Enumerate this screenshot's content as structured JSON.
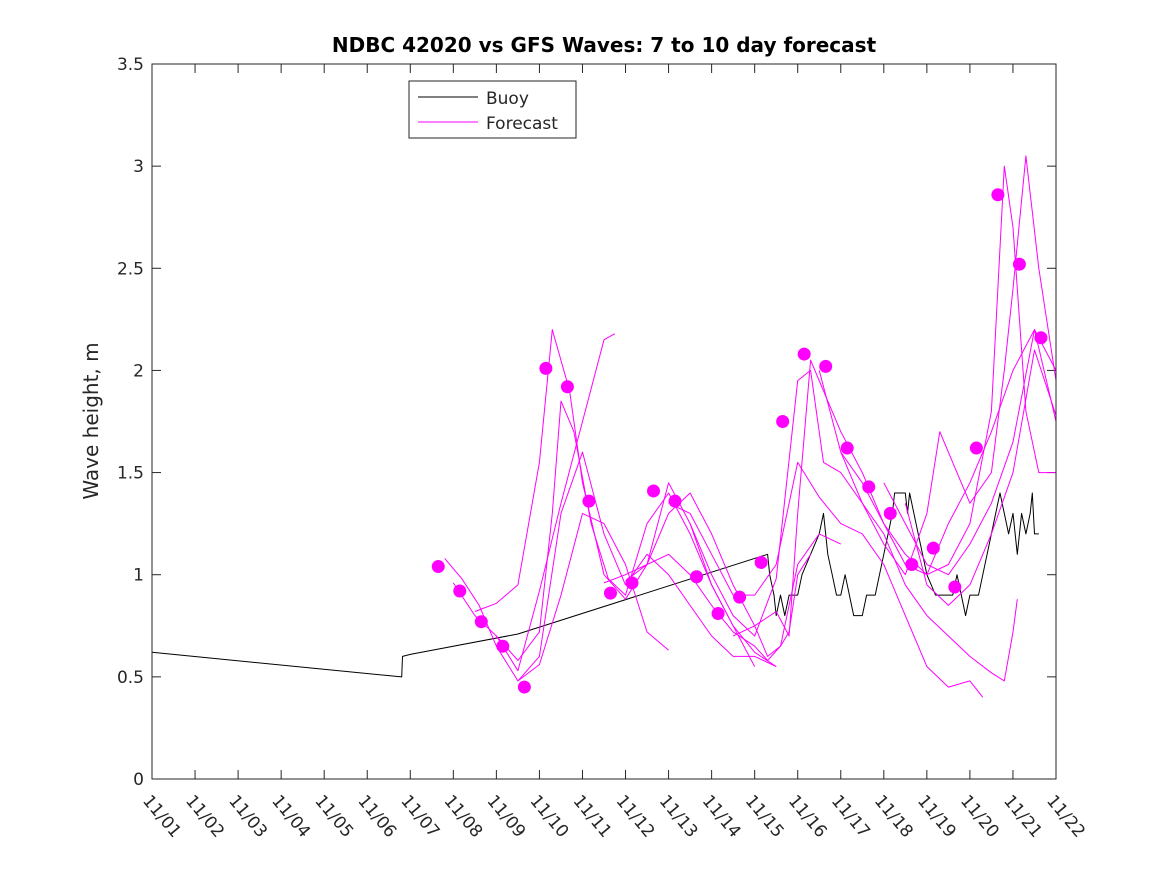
{
  "chart_data": {
    "type": "line",
    "title": "NDBC 42020 vs GFS Waves: 7 to 10 day forecast",
    "xlabel": "",
    "ylabel": "Wave height, m",
    "xlim": [
      0,
      21
    ],
    "ylim": [
      0,
      3.5
    ],
    "x_ticks": [
      0,
      1,
      2,
      3,
      4,
      5,
      6,
      7,
      8,
      9,
      10,
      11,
      12,
      13,
      14,
      15,
      16,
      17,
      18,
      19,
      20,
      21
    ],
    "x_tick_labels": [
      "11/01",
      "11/02",
      "11/03",
      "11/04",
      "11/05",
      "11/06",
      "11/07",
      "11/08",
      "11/09",
      "11/10",
      "11/11",
      "11/12",
      "11/13",
      "11/14",
      "11/15",
      "11/16",
      "11/17",
      "11/18",
      "11/19",
      "11/20",
      "11/21",
      "11/22"
    ],
    "y_ticks": [
      0,
      0.5,
      1,
      1.5,
      2,
      2.5,
      3,
      3.5
    ],
    "y_tick_labels": [
      "0",
      "0.5",
      "1",
      "1.5",
      "2",
      "2.5",
      "3",
      "3.5"
    ],
    "legend": {
      "position": "top-left",
      "entries": [
        {
          "label": "Buoy",
          "color": "#000000"
        },
        {
          "label": "Forecast",
          "color": "#ff00ff"
        }
      ]
    },
    "colors": {
      "buoy": "#000000",
      "forecast": "#ff00ff"
    },
    "series": [
      {
        "name": "Buoy",
        "color": "#000000",
        "points": [
          [
            0,
            0.62
          ],
          [
            5.8,
            0.5
          ],
          [
            5.82,
            0.6
          ],
          [
            6.0,
            0.61
          ],
          [
            8.5,
            0.71
          ],
          [
            14.3,
            1.1
          ],
          [
            14.35,
            1.0
          ],
          [
            14.45,
            0.9
          ],
          [
            14.5,
            0.8
          ],
          [
            14.6,
            0.9
          ],
          [
            14.7,
            0.8
          ],
          [
            14.8,
            0.9
          ],
          [
            15.0,
            0.9
          ],
          [
            15.1,
            1.0
          ],
          [
            15.3,
            1.1
          ],
          [
            15.5,
            1.2
          ],
          [
            15.6,
            1.3
          ],
          [
            15.7,
            1.1
          ],
          [
            15.8,
            1.0
          ],
          [
            15.9,
            0.9
          ],
          [
            16.0,
            0.9
          ],
          [
            16.1,
            1.0
          ],
          [
            16.2,
            0.9
          ],
          [
            16.3,
            0.8
          ],
          [
            16.5,
            0.8
          ],
          [
            16.6,
            0.9
          ],
          [
            16.8,
            0.9
          ],
          [
            16.9,
            1.0
          ],
          [
            17.0,
            1.1
          ],
          [
            17.1,
            1.2
          ],
          [
            17.2,
            1.3
          ],
          [
            17.25,
            1.4
          ],
          [
            17.5,
            1.4
          ],
          [
            17.55,
            1.3
          ],
          [
            17.6,
            1.4
          ],
          [
            17.7,
            1.3
          ],
          [
            17.8,
            1.2
          ],
          [
            17.9,
            1.1
          ],
          [
            18.0,
            1.0
          ],
          [
            18.2,
            0.9
          ],
          [
            18.6,
            0.9
          ],
          [
            18.7,
            1.0
          ],
          [
            18.8,
            0.9
          ],
          [
            18.9,
            0.8
          ],
          [
            19.0,
            0.9
          ],
          [
            19.2,
            0.9
          ],
          [
            19.3,
            1.0
          ],
          [
            19.4,
            1.1
          ],
          [
            19.5,
            1.2
          ],
          [
            19.6,
            1.3
          ],
          [
            19.7,
            1.4
          ],
          [
            19.8,
            1.3
          ],
          [
            19.9,
            1.2
          ],
          [
            20.0,
            1.3
          ],
          [
            20.1,
            1.1
          ],
          [
            20.2,
            1.3
          ],
          [
            20.3,
            1.2
          ],
          [
            20.4,
            1.3
          ],
          [
            20.45,
            1.4
          ],
          [
            20.5,
            1.2
          ],
          [
            20.6,
            1.2
          ]
        ]
      },
      {
        "name": "Forecast",
        "color": "#ff00ff",
        "points": [
          [
            6.8,
            1.08
          ],
          [
            7.2,
            0.98
          ],
          [
            7.6,
            0.85
          ],
          [
            8.0,
            0.65
          ],
          [
            8.5,
            0.48
          ],
          [
            9.0,
            0.56
          ],
          [
            9.5,
            0.9
          ],
          [
            10.0,
            1.3
          ],
          [
            10.5,
            1.25
          ],
          [
            11.0,
            1.05
          ],
          [
            11.5,
            0.72
          ],
          [
            12.0,
            0.63
          ]
        ]
      },
      {
        "name": "Forecast",
        "color": "#ff00ff",
        "points": [
          [
            7.0,
            0.96
          ],
          [
            7.5,
            0.8
          ],
          [
            8.0,
            0.7
          ],
          [
            8.5,
            0.58
          ],
          [
            9.0,
            0.72
          ],
          [
            9.3,
            1.3
          ],
          [
            9.5,
            1.85
          ],
          [
            9.8,
            1.7
          ],
          [
            10.2,
            1.25
          ],
          [
            10.6,
            0.98
          ],
          [
            11.0,
            0.9
          ],
          [
            11.5,
            1.25
          ],
          [
            12.0,
            1.4
          ],
          [
            12.5,
            1.2
          ],
          [
            13.0,
            0.95
          ],
          [
            13.5,
            0.75
          ],
          [
            14.0,
            0.55
          ]
        ]
      },
      {
        "name": "Forecast",
        "color": "#ff00ff",
        "points": [
          [
            7.5,
            0.82
          ],
          [
            8.0,
            0.86
          ],
          [
            8.5,
            0.95
          ],
          [
            9.0,
            1.55
          ],
          [
            9.3,
            2.2
          ],
          [
            9.7,
            1.9
          ],
          [
            10.0,
            1.45
          ],
          [
            10.5,
            1.0
          ],
          [
            11.0,
            0.88
          ],
          [
            11.5,
            1.05
          ],
          [
            12.0,
            1.45
          ],
          [
            12.5,
            1.25
          ],
          [
            13.0,
            0.95
          ],
          [
            13.5,
            0.75
          ],
          [
            14.0,
            0.62
          ],
          [
            14.5,
            0.55
          ]
        ]
      },
      {
        "name": "Forecast",
        "color": "#ff00ff",
        "points": [
          [
            8.0,
            0.7
          ],
          [
            8.5,
            0.53
          ],
          [
            9.0,
            0.92
          ],
          [
            9.5,
            1.35
          ],
          [
            10.0,
            1.75
          ],
          [
            10.5,
            2.15
          ],
          [
            10.75,
            2.18
          ]
        ]
      },
      {
        "name": "Forecast",
        "color": "#ff00ff",
        "points": [
          [
            8.5,
            0.48
          ],
          [
            9.0,
            0.6
          ],
          [
            9.5,
            1.3
          ],
          [
            10.0,
            1.6
          ],
          [
            10.5,
            1.2
          ],
          [
            11.0,
            0.95
          ],
          [
            11.5,
            1.1
          ],
          [
            12.0,
            1.0
          ],
          [
            12.5,
            0.85
          ],
          [
            13.0,
            0.7
          ],
          [
            13.5,
            0.6
          ],
          [
            14.0,
            0.6
          ],
          [
            14.5,
            0.55
          ]
        ]
      },
      {
        "name": "Forecast",
        "color": "#ff00ff",
        "points": [
          [
            10.5,
            0.96
          ],
          [
            11.0,
            1.0
          ],
          [
            11.5,
            1.05
          ],
          [
            12.0,
            1.1
          ],
          [
            12.5,
            1.0
          ],
          [
            13.0,
            0.85
          ],
          [
            13.5,
            0.72
          ],
          [
            14.0,
            0.65
          ],
          [
            14.3,
            0.58
          ],
          [
            14.6,
            0.65
          ],
          [
            14.8,
            0.72
          ],
          [
            15.0,
            1.0
          ],
          [
            15.3,
            1.1
          ]
        ]
      },
      {
        "name": "Forecast",
        "color": "#ff00ff",
        "points": [
          [
            11.0,
            0.97
          ],
          [
            11.5,
            1.05
          ],
          [
            12.0,
            1.3
          ],
          [
            12.5,
            1.4
          ],
          [
            13.0,
            1.2
          ],
          [
            13.5,
            0.95
          ],
          [
            14.0,
            0.75
          ],
          [
            14.3,
            0.6
          ],
          [
            14.6,
            0.65
          ],
          [
            14.8,
            0.85
          ],
          [
            15.0,
            1.05
          ],
          [
            15.5,
            1.2
          ],
          [
            16.0,
            1.15
          ]
        ]
      },
      {
        "name": "Forecast",
        "color": "#ff00ff",
        "points": [
          [
            12.0,
            1.35
          ],
          [
            12.5,
            1.3
          ],
          [
            13.0,
            1.1
          ],
          [
            13.5,
            0.9
          ],
          [
            14.0,
            0.9
          ],
          [
            14.5,
            1.05
          ],
          [
            15.0,
            1.55
          ],
          [
            15.5,
            1.38
          ],
          [
            16.0,
            1.25
          ],
          [
            16.5,
            1.2
          ],
          [
            17.0,
            1.05
          ],
          [
            17.5,
            0.8
          ],
          [
            18.0,
            0.55
          ],
          [
            18.5,
            0.45
          ],
          [
            19.0,
            0.48
          ],
          [
            19.3,
            0.4
          ]
        ]
      },
      {
        "name": "Forecast",
        "color": "#ff00ff",
        "points": [
          [
            12.5,
            1.25
          ],
          [
            13.0,
            1.0
          ],
          [
            13.5,
            0.8
          ],
          [
            14.0,
            0.7
          ],
          [
            14.5,
            0.98
          ],
          [
            15.0,
            1.95
          ],
          [
            15.3,
            2.0
          ],
          [
            15.6,
            1.55
          ],
          [
            16.0,
            1.5
          ],
          [
            16.5,
            1.35
          ],
          [
            17.0,
            1.2
          ],
          [
            17.5,
            0.95
          ],
          [
            18.0,
            0.8
          ],
          [
            18.5,
            0.7
          ],
          [
            19.0,
            0.6
          ],
          [
            19.5,
            0.52
          ],
          [
            19.8,
            0.48
          ],
          [
            20.0,
            0.72
          ],
          [
            20.1,
            0.88
          ]
        ]
      },
      {
        "name": "Forecast",
        "color": "#ff00ff",
        "points": [
          [
            13.5,
            0.7
          ],
          [
            14.0,
            0.75
          ],
          [
            14.5,
            0.82
          ],
          [
            14.8,
            0.7
          ],
          [
            15.0,
            1.3
          ],
          [
            15.3,
            2.05
          ],
          [
            15.7,
            1.85
          ],
          [
            16.0,
            1.7
          ],
          [
            16.5,
            1.5
          ],
          [
            17.0,
            1.25
          ],
          [
            17.5,
            1.05
          ],
          [
            18.0,
            1.0
          ],
          [
            18.5,
            1.05
          ],
          [
            19.0,
            1.25
          ],
          [
            19.5,
            1.8
          ],
          [
            19.8,
            3.0
          ],
          [
            20.0,
            2.7
          ],
          [
            20.3,
            1.8
          ],
          [
            20.6,
            1.5
          ],
          [
            21.0,
            1.5
          ]
        ]
      },
      {
        "name": "Forecast",
        "color": "#ff00ff",
        "points": [
          [
            15.5,
            2.0
          ],
          [
            16.0,
            1.6
          ],
          [
            16.5,
            1.45
          ],
          [
            17.0,
            1.25
          ],
          [
            17.5,
            1.1
          ],
          [
            18.0,
            1.0
          ],
          [
            18.5,
            1.25
          ],
          [
            19.0,
            1.45
          ],
          [
            19.5,
            1.7
          ],
          [
            20.0,
            2.0
          ],
          [
            20.5,
            2.2
          ],
          [
            21.0,
            1.75
          ]
        ]
      },
      {
        "name": "Forecast",
        "color": "#ff00ff",
        "points": [
          [
            16.0,
            1.6
          ],
          [
            16.5,
            1.35
          ],
          [
            17.0,
            1.15
          ],
          [
            17.5,
            1.0
          ],
          [
            18.0,
            1.3
          ],
          [
            18.3,
            1.7
          ],
          [
            18.6,
            1.55
          ],
          [
            19.0,
            1.35
          ],
          [
            19.5,
            1.5
          ],
          [
            19.8,
            2.0
          ],
          [
            20.0,
            2.4
          ],
          [
            20.3,
            3.05
          ],
          [
            20.6,
            2.5
          ],
          [
            21.0,
            1.95
          ]
        ]
      },
      {
        "name": "Forecast",
        "color": "#ff00ff",
        "points": [
          [
            17.0,
            1.45
          ],
          [
            17.5,
            1.25
          ],
          [
            18.0,
            1.05
          ],
          [
            18.5,
            1.0
          ],
          [
            19.0,
            1.15
          ],
          [
            19.5,
            1.35
          ],
          [
            20.0,
            1.65
          ],
          [
            20.5,
            2.2
          ],
          [
            21.0,
            2.0
          ]
        ]
      },
      {
        "name": "Forecast",
        "color": "#ff00ff",
        "points": [
          [
            17.5,
            1.35
          ],
          [
            18.0,
            0.95
          ],
          [
            18.5,
            0.85
          ],
          [
            19.0,
            0.95
          ],
          [
            19.5,
            1.2
          ],
          [
            20.0,
            1.5
          ],
          [
            20.5,
            2.1
          ],
          [
            21.0,
            1.78
          ]
        ]
      }
    ],
    "markers": {
      "name": "Forecast",
      "color": "#ff00ff",
      "x": [
        6.65,
        7.15,
        7.65,
        8.15,
        8.65,
        9.15,
        9.65,
        10.15,
        10.65,
        11.15,
        11.65,
        12.15,
        12.65,
        13.15,
        13.65,
        14.15,
        14.65,
        15.15,
        15.65,
        16.15,
        16.65,
        17.15,
        17.65,
        18.15,
        18.65,
        19.15,
        19.65,
        20.15,
        20.65
      ],
      "y": [
        1.04,
        0.92,
        0.77,
        0.65,
        0.45,
        2.01,
        1.92,
        1.36,
        0.91,
        0.96,
        1.41,
        1.36,
        0.99,
        0.81,
        0.89,
        1.06,
        1.75,
        2.08,
        2.02,
        1.62,
        1.43,
        1.3,
        1.05,
        1.13,
        0.94,
        1.62,
        2.86,
        2.52,
        2.16
      ]
    }
  }
}
